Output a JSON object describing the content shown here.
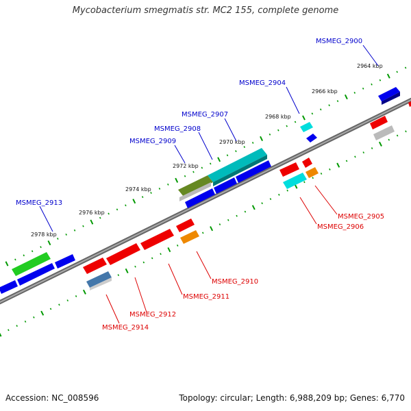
{
  "title": "Mycobacterium smegmatis str. MC2 155, complete genome",
  "footer": {
    "accession": "Accession: NC_008596",
    "summary": "Topology: circular; Length: 6,988,209 bp; Genes: 6,770"
  },
  "colors": {
    "plus_label": "#0000cc",
    "minus_label": "#dd0000",
    "backbone": "#888888",
    "ticks": "#009900"
  },
  "scale_labels": [
    "2964 kbp",
    "2966 kbp",
    "2968 kbp",
    "2970 kbp",
    "2972 kbp",
    "2974 kbp",
    "2976 kbp",
    "2978 kbp"
  ],
  "genes_plus": [
    {
      "label": "MSMEG_2900",
      "color": "#0000ee"
    },
    {
      "label": "MSMEG_2904",
      "color": "#00cccc"
    },
    {
      "label": "MSMEG_2907",
      "color": "#00bbbb"
    },
    {
      "label": "MSMEG_2908",
      "color": "#668822"
    },
    {
      "label": "MSMEG_2909",
      "color": "#0000ee"
    },
    {
      "label": "MSMEG_2913",
      "color": "#22bb22"
    }
  ],
  "genes_minus": [
    {
      "label": "MSMEG_2905",
      "color": "#ee8800"
    },
    {
      "label": "MSMEG_2906",
      "color": "#00cccc"
    },
    {
      "label": "MSMEG_2910",
      "color": "#ee8800"
    },
    {
      "label": "MSMEG_2911",
      "color": "#ee0000"
    },
    {
      "label": "MSMEG_2912",
      "color": "#ee0000"
    },
    {
      "label": "MSMEG_2914",
      "color": "#4477aa"
    }
  ]
}
